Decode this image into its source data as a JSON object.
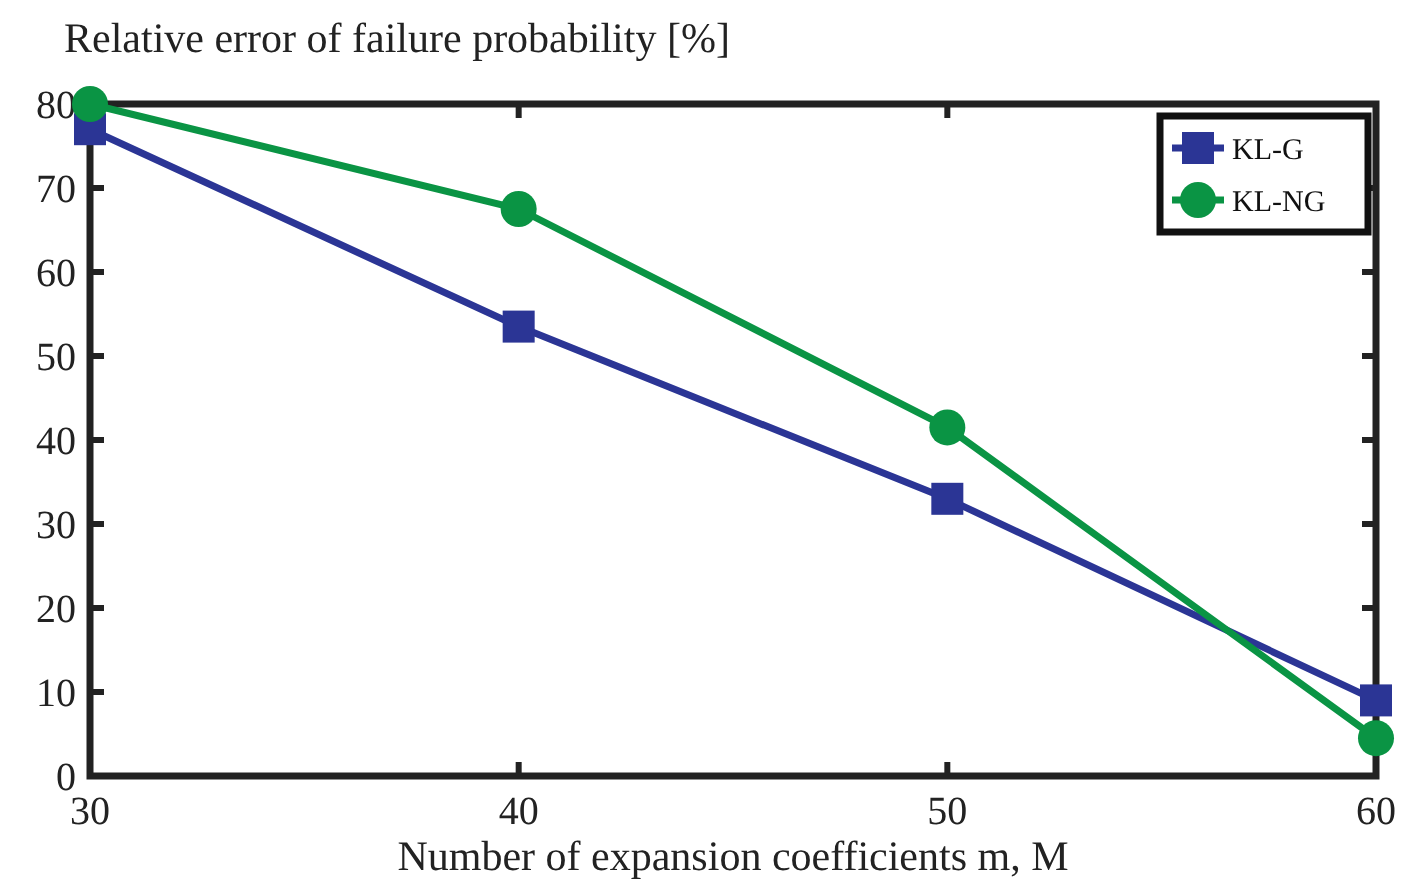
{
  "chart_data": {
    "type": "line",
    "title": "Relative error of failure probability [%]",
    "xlabel": "Number of expansion coefficients m, M",
    "x": [
      30,
      40,
      50,
      60
    ],
    "xlim": [
      30,
      60
    ],
    "xticks": [
      30,
      40,
      50,
      60
    ],
    "ylim": [
      0,
      80
    ],
    "yticks": [
      0,
      10,
      20,
      30,
      40,
      50,
      60,
      70,
      80
    ],
    "legend": "top right",
    "line_style": "solid",
    "grid": false,
    "series": [
      {
        "name": "KL-G",
        "color": "#2b3595",
        "marker": "square",
        "values": [
          77,
          53.5,
          33,
          9
        ]
      },
      {
        "name": "KL-NG",
        "color": "#0a9444",
        "marker": "circle",
        "values": [
          80,
          67.5,
          41.5,
          4.5
        ]
      }
    ]
  }
}
